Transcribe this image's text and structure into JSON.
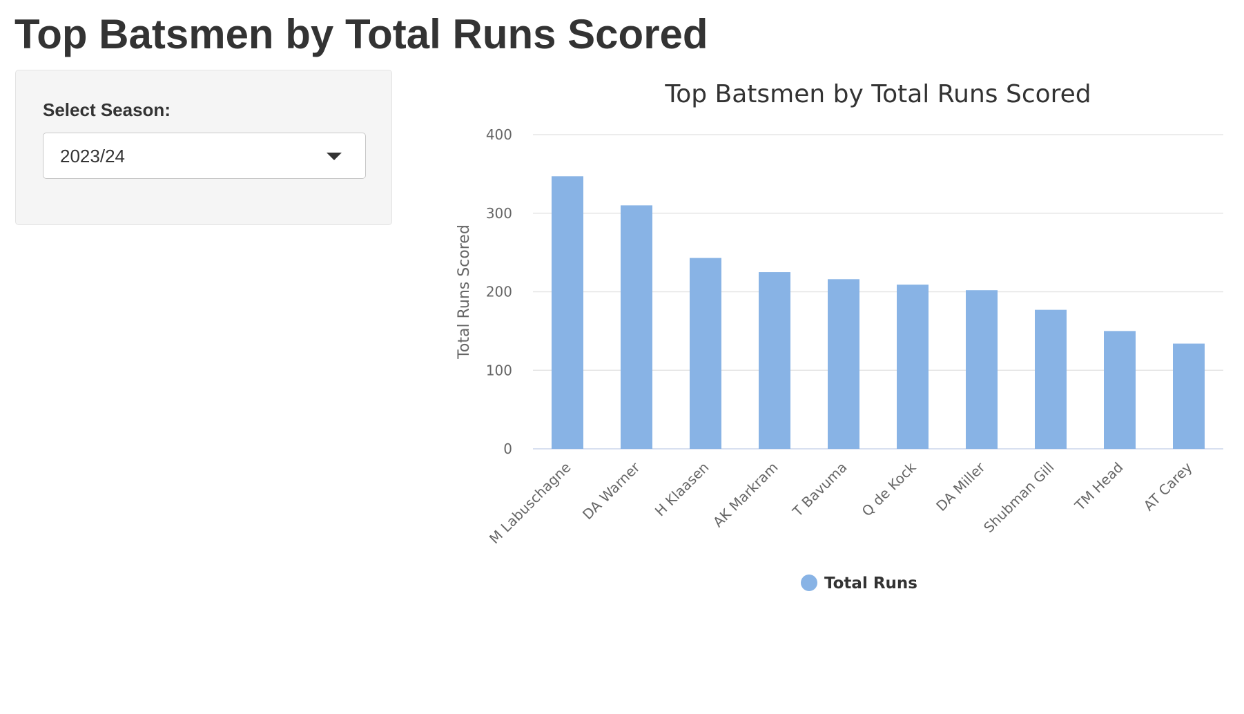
{
  "page": {
    "title": "Top Batsmen by Total Runs Scored"
  },
  "sidebar": {
    "season_label": "Select Season:",
    "season_selected": "2023/24",
    "dropdown_icon": "caret-down-icon"
  },
  "colors": {
    "bar": "#88b3e5",
    "gridline": "#e6e6e6",
    "axis_line": "#ccd6eb",
    "panel_background": "#f5f5f5"
  },
  "chart_data": {
    "type": "bar",
    "title": "Top Batsmen by Total Runs Scored",
    "xlabel": "",
    "ylabel": "Total Runs Scored",
    "categories": [
      "M Labuschagne",
      "DA Warner",
      "H Klaasen",
      "AK Markram",
      "T Bavuma",
      "Q de Kock",
      "DA Miller",
      "Shubman Gill",
      "TM Head",
      "AT Carey"
    ],
    "series": [
      {
        "name": "Total Runs",
        "values": [
          347,
          310,
          243,
          225,
          216,
          209,
          202,
          177,
          150,
          134
        ]
      }
    ],
    "ylim": [
      0,
      400
    ],
    "yticks": [
      "0",
      "100",
      "200",
      "300",
      "400"
    ],
    "grid": true,
    "legend_position": "bottom-center"
  }
}
